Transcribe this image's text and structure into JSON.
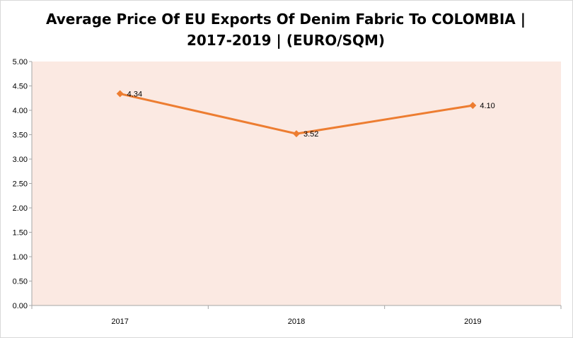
{
  "chart_data": {
    "type": "line",
    "title_line1": "Average Price Of EU Exports Of Denim Fabric To COLOMBIA |",
    "title_line2": "2017-2019 | (EURO/SQM)",
    "categories": [
      "2017",
      "2018",
      "2019"
    ],
    "series": [
      {
        "values": [
          4.34,
          3.52,
          4.1
        ],
        "data_labels": [
          "4.34",
          "3.52",
          "4.10"
        ]
      }
    ],
    "yticks": [
      "0.00",
      "0.50",
      "1.00",
      "1.50",
      "2.00",
      "2.50",
      "3.00",
      "3.50",
      "4.00",
      "4.50",
      "5.00"
    ],
    "ylim": [
      0,
      5
    ],
    "xlabel": "",
    "ylabel": "",
    "grid": false,
    "legend": "none",
    "colors": {
      "line": "#ed7d31",
      "plot_background": "#fbe9e2",
      "axis": "#a6a6a6"
    }
  }
}
